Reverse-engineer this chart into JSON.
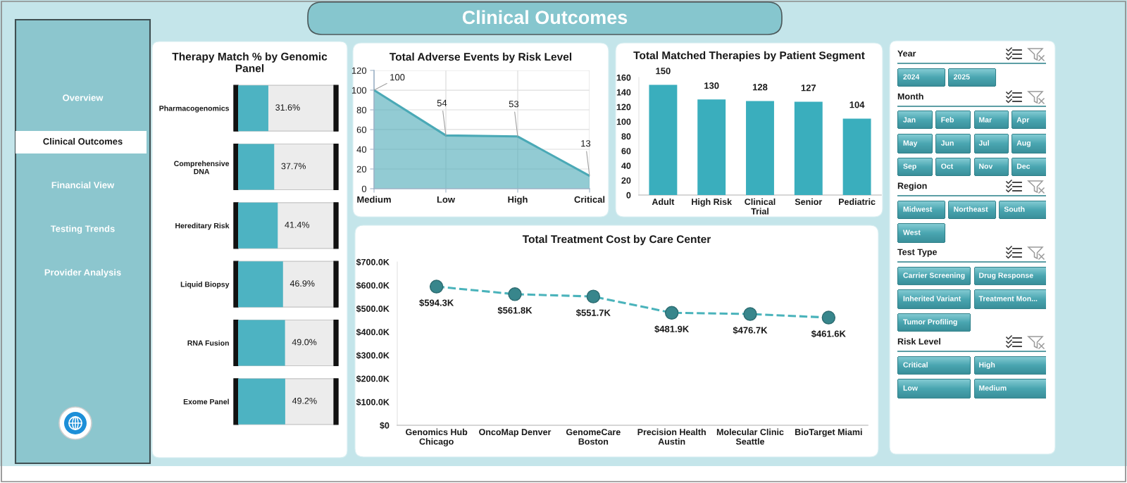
{
  "chart_data": [
    {
      "type": "other",
      "title": "Clinical Outcomes"
    },
    {
      "type": "other",
      "categories": [
        "Overview",
        "Clinical Outcomes",
        "Financial View",
        "Testing Trends",
        "Provider Analysis"
      ]
    },
    {
      "type": "bar",
      "orientation": "horizontal",
      "title": "Therapy Match % by Genomic Panel",
      "categories": [
        "Pharmacogenomics",
        "Comprehensive DNA",
        "Hereditary Risk",
        "Liquid Biopsy",
        "RNA Fusion",
        "Exome Panel"
      ],
      "values": [
        31.6,
        37.7,
        41.4,
        46.9,
        49.0,
        49.2
      ],
      "value_labels": [
        "31.6%",
        "37.7%",
        "41.4%",
        "46.9%",
        "49.0%",
        "49.2%"
      ],
      "color": "#4db3c2",
      "xlim": [
        0,
        100
      ],
      "tick_labels": "y"
    },
    {
      "type": "area",
      "title": "Total Adverse Events by Risk Level",
      "categories": [
        "Medium",
        "Low",
        "High",
        "Critical"
      ],
      "values": [
        100,
        54,
        53,
        13
      ],
      "color": "#4aa9b6",
      "ylim": [
        0,
        120
      ],
      "yticks": [
        0,
        20,
        40,
        60,
        80,
        100,
        120
      ],
      "grid": true,
      "data_labels": true
    },
    {
      "type": "bar",
      "title": "Total Matched Therapies by Patient Segment",
      "categories": [
        "Adult",
        "High Risk",
        "Clinical Trial",
        "Senior",
        "Pediatric"
      ],
      "values": [
        150,
        130,
        128,
        127,
        104
      ],
      "color": "#3aaebd",
      "ylim": [
        0,
        160
      ],
      "yticks": [
        0,
        20,
        40,
        60,
        80,
        100,
        120,
        140,
        160
      ],
      "data_labels": true
    },
    {
      "type": "line",
      "title": "Total Treatment Cost by Care Center",
      "categories": [
        "Genomics Hub Chicago",
        "OncoMap Denver",
        "GenomeCare Boston",
        "Precision Health Austin",
        "Molecular Clinic Seattle",
        "BioTarget Miami"
      ],
      "values": [
        594.3,
        561.8,
        551.7,
        481.9,
        476.7,
        461.6
      ],
      "value_labels": [
        "$594.3K",
        "$561.8K",
        "$551.7K",
        "$481.9K",
        "$476.7K",
        "$461.6K"
      ],
      "color": "#4ab3bb",
      "line_style": "dashed",
      "marker": "circle",
      "ylim": [
        0,
        700
      ],
      "yticks": [
        {
          "value": 0,
          "label": "$0"
        },
        {
          "value": 100,
          "label": "$100.0K"
        },
        {
          "value": 200,
          "label": "$200.0K"
        },
        {
          "value": 300,
          "label": "$300.0K"
        },
        {
          "value": 400,
          "label": "$400.0K"
        },
        {
          "value": 500,
          "label": "$500.0K"
        },
        {
          "value": 600,
          "label": "$600.0K"
        },
        {
          "value": 700,
          "label": "$700.0K"
        }
      ]
    },
    {
      "type": "other",
      "title": "Year",
      "categories": [
        "2024",
        "2025"
      ]
    },
    {
      "type": "other",
      "title": "Month",
      "categories": [
        "Jan",
        "Feb",
        "Mar",
        "Apr",
        "May",
        "Jun",
        "Jul",
        "Aug",
        "Sep",
        "Oct",
        "Nov",
        "Dec"
      ]
    },
    {
      "type": "other",
      "title": "Region",
      "categories": [
        "Midwest",
        "Northeast",
        "South",
        "West"
      ]
    },
    {
      "type": "other",
      "title": "Test Type",
      "categories": [
        "Carrier Screening",
        "Drug Response",
        "Inherited Variant",
        "Treatment Mon...",
        "Tumor Profiling"
      ]
    },
    {
      "type": "other",
      "title": "Risk Level",
      "categories": [
        "Critical",
        "High",
        "Low",
        "Medium"
      ]
    }
  ]
}
